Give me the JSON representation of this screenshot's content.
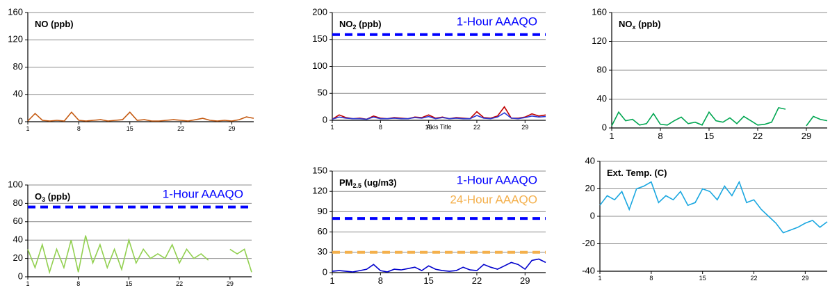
{
  "chart_data": [
    {
      "type": "line",
      "title": [
        {
          "text": "NO (ppb)"
        }
      ],
      "x": [
        1,
        2,
        3,
        4,
        5,
        6,
        7,
        8,
        9,
        10,
        11,
        12,
        13,
        14,
        15,
        16,
        17,
        18,
        19,
        20,
        21,
        22,
        23,
        24,
        25,
        26,
        27,
        28,
        29,
        30,
        31,
        32
      ],
      "series": [
        {
          "color": "#c55a11",
          "values": [
            1,
            12,
            2,
            1,
            2,
            1,
            14,
            2,
            1,
            2,
            3,
            1,
            2,
            3,
            14,
            2,
            3,
            1,
            1,
            2,
            3,
            2,
            1,
            3,
            5,
            2,
            1,
            2,
            1,
            3,
            7,
            5
          ]
        }
      ],
      "xlim": [
        1,
        32
      ],
      "xticks": [
        1,
        8,
        15,
        22,
        29
      ],
      "ylim": [
        0,
        160
      ],
      "yticks": [
        0,
        40,
        80,
        120,
        160
      ],
      "grid": true
    },
    {
      "type": "line",
      "title": [
        {
          "text": "NO"
        },
        {
          "text": "2",
          "sub": true
        },
        {
          "text": " (ppb)"
        }
      ],
      "x_label": "Axis Title",
      "x": [
        1,
        2,
        3,
        4,
        5,
        6,
        7,
        8,
        9,
        10,
        11,
        12,
        13,
        14,
        15,
        16,
        17,
        18,
        19,
        20,
        21,
        22,
        23,
        24,
        25,
        26,
        27,
        28,
        29,
        30,
        31,
        32
      ],
      "series": [
        {
          "color": "#c00000",
          "values": [
            2,
            10,
            5,
            3,
            4,
            2,
            8,
            4,
            3,
            5,
            4,
            3,
            6,
            5,
            10,
            4,
            6,
            3,
            5,
            4,
            3,
            16,
            5,
            4,
            8,
            25,
            4,
            4,
            6,
            12,
            8,
            10
          ]
        },
        {
          "color": "#2e3bd6",
          "values": [
            2,
            6,
            4,
            3,
            3,
            2,
            6,
            3,
            3,
            4,
            3,
            3,
            5,
            4,
            7,
            3,
            5,
            3,
            4,
            3,
            3,
            9,
            4,
            3,
            6,
            14,
            4,
            3,
            5,
            8,
            6,
            7
          ]
        }
      ],
      "reference_lines": [
        {
          "value": 159,
          "label": "1-Hour AAAQO",
          "color": "#0000ff"
        }
      ],
      "xlim": [
        1,
        32
      ],
      "xticks": [
        1,
        8,
        15,
        22,
        29
      ],
      "ylim": [
        0,
        200
      ],
      "yticks": [
        0,
        50,
        100,
        150,
        200
      ],
      "grid": true
    },
    {
      "type": "line",
      "title": [
        {
          "text": "NO"
        },
        {
          "text": "x",
          "sub": true
        },
        {
          "text": " (ppb)"
        }
      ],
      "x": [
        1,
        2,
        3,
        4,
        5,
        6,
        7,
        8,
        9,
        10,
        11,
        12,
        13,
        14,
        15,
        16,
        17,
        18,
        19,
        20,
        21,
        22,
        23,
        24,
        25,
        26,
        27,
        28,
        29,
        30,
        31,
        32
      ],
      "series": [
        {
          "color": "#00a651",
          "values": [
            3,
            22,
            10,
            12,
            4,
            6,
            20,
            5,
            4,
            10,
            15,
            6,
            8,
            4,
            22,
            10,
            8,
            14,
            6,
            16,
            10,
            4,
            5,
            8,
            28,
            26,
            null,
            null,
            3,
            16,
            12,
            10
          ]
        }
      ],
      "xlim": [
        1,
        32
      ],
      "xticks": [
        1,
        8,
        15,
        22,
        29
      ],
      "ylim": [
        0,
        160
      ],
      "yticks": [
        0,
        40,
        80,
        120,
        160
      ],
      "grid": true
    },
    {
      "type": "line",
      "title": [
        {
          "text": "O"
        },
        {
          "text": "3",
          "sub": true
        },
        {
          "text": " (ppb)"
        }
      ],
      "x": [
        1,
        2,
        3,
        4,
        5,
        6,
        7,
        8,
        9,
        10,
        11,
        12,
        13,
        14,
        15,
        16,
        17,
        18,
        19,
        20,
        21,
        22,
        23,
        24,
        25,
        26,
        27,
        28,
        29,
        30,
        31,
        32
      ],
      "series": [
        {
          "color": "#92d050",
          "values": [
            30,
            10,
            35,
            5,
            30,
            10,
            40,
            5,
            45,
            15,
            35,
            10,
            30,
            8,
            40,
            15,
            30,
            20,
            25,
            20,
            35,
            15,
            30,
            20,
            25,
            18,
            null,
            null,
            30,
            25,
            30,
            5
          ]
        }
      ],
      "reference_lines": [
        {
          "value": 76,
          "label": "1-Hour AAAQO",
          "color": "#0000ff"
        }
      ],
      "xlim": [
        1,
        32
      ],
      "xticks": [
        1,
        8,
        15,
        22,
        29
      ],
      "ylim": [
        0,
        100
      ],
      "yticks": [
        0,
        20,
        40,
        60,
        80,
        100
      ],
      "grid": true
    },
    {
      "type": "line",
      "title": [
        {
          "text": "PM"
        },
        {
          "text": "2.5",
          "sub": true
        },
        {
          "text": " (ug/m3)"
        }
      ],
      "x": [
        1,
        2,
        3,
        4,
        5,
        6,
        7,
        8,
        9,
        10,
        11,
        12,
        13,
        14,
        15,
        16,
        17,
        18,
        19,
        20,
        21,
        22,
        23,
        24,
        25,
        26,
        27,
        28,
        29,
        30,
        31,
        32
      ],
      "series": [
        {
          "color": "#0000cc",
          "values": [
            2,
            3,
            2,
            1,
            3,
            5,
            12,
            3,
            1,
            5,
            4,
            6,
            8,
            3,
            10,
            5,
            3,
            2,
            3,
            8,
            4,
            3,
            12,
            8,
            5,
            10,
            15,
            12,
            5,
            18,
            20,
            15
          ]
        }
      ],
      "reference_lines": [
        {
          "value": 80,
          "label": "1-Hour AAAQO",
          "color": "#0000ff"
        },
        {
          "value": 30,
          "label": "24-Hour AAAQO",
          "color": "#f4b04c"
        }
      ],
      "xlim": [
        1,
        32
      ],
      "xticks": [
        1,
        8,
        15,
        22,
        29
      ],
      "ylim": [
        0,
        150
      ],
      "yticks": [
        0,
        30,
        60,
        90,
        120,
        150
      ],
      "grid": true
    },
    {
      "type": "line",
      "title": [
        {
          "text": "Ext. Temp. (C)"
        }
      ],
      "x": [
        1,
        2,
        3,
        4,
        5,
        6,
        7,
        8,
        9,
        10,
        11,
        12,
        13,
        14,
        15,
        16,
        17,
        18,
        19,
        20,
        21,
        22,
        23,
        24,
        25,
        26,
        27,
        28,
        29,
        30,
        31,
        32
      ],
      "series": [
        {
          "color": "#1aa7e0",
          "values": [
            8,
            15,
            12,
            18,
            5,
            20,
            22,
            25,
            10,
            15,
            12,
            18,
            8,
            10,
            20,
            18,
            12,
            22,
            15,
            25,
            10,
            12,
            5,
            0,
            -5,
            -12,
            -10,
            -8,
            -5,
            -3,
            -8,
            -4
          ]
        }
      ],
      "xlim": [
        1,
        32
      ],
      "xticks": [
        1,
        8,
        15,
        22,
        29
      ],
      "ylim": [
        -40,
        40
      ],
      "yticks": [
        -40,
        -20,
        0,
        20,
        40
      ],
      "grid": true
    }
  ]
}
